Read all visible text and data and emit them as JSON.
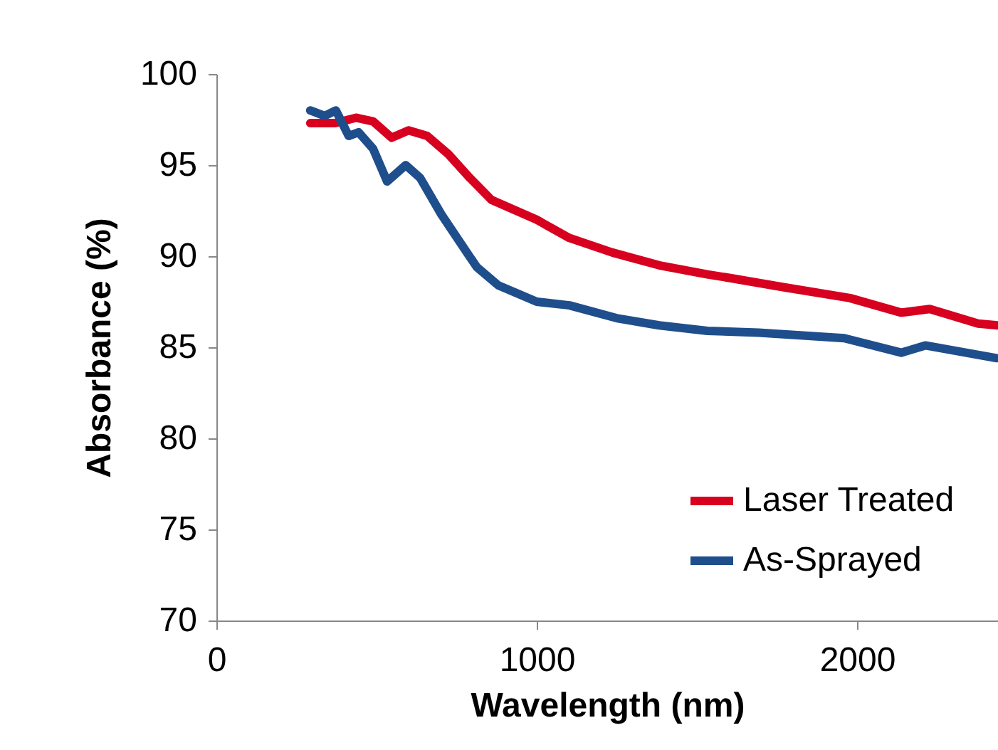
{
  "chart_data": {
    "type": "line",
    "xlabel": "Wavelength (nm)",
    "ylabel": "Absorbance (%)",
    "xlim": [
      0,
      2440
    ],
    "xticks": [
      0,
      1000,
      2000
    ],
    "ylim": [
      70,
      100
    ],
    "yticks": [
      70,
      75,
      80,
      85,
      90,
      95,
      100
    ],
    "grid": false,
    "legend": "bottom right",
    "marker": "none",
    "line_style": "solid",
    "series": [
      {
        "name": "Laser Treated",
        "color": "#d7001f",
        "x": [
          293,
          369,
          436,
          489,
          547,
          600,
          658,
          724,
          791,
          858,
          1000,
          1102,
          1236,
          1382,
          1533,
          1604,
          1769,
          1978,
          2138,
          2227,
          2378,
          2440
        ],
        "values": [
          97.3,
          97.3,
          97.6,
          97.4,
          96.5,
          96.9,
          96.6,
          95.6,
          94.3,
          93.1,
          92.0,
          91.0,
          90.2,
          89.5,
          89.0,
          88.8,
          88.3,
          87.7,
          86.9,
          87.1,
          86.3,
          86.2
        ]
      },
      {
        "name": "As-Sprayed",
        "color": "#1f4e8c",
        "x": [
          293,
          338,
          373,
          413,
          444,
          489,
          533,
          591,
          636,
          702,
          782,
          813,
          880,
          1000,
          1102,
          1249,
          1382,
          1533,
          1693,
          1960,
          2138,
          2213,
          2436
        ],
        "values": [
          98.0,
          97.7,
          98.0,
          96.6,
          96.8,
          95.9,
          94.1,
          95.0,
          94.3,
          92.3,
          90.2,
          89.4,
          88.4,
          87.5,
          87.3,
          86.6,
          86.2,
          85.9,
          85.8,
          85.5,
          84.7,
          85.1,
          84.4
        ]
      }
    ]
  }
}
